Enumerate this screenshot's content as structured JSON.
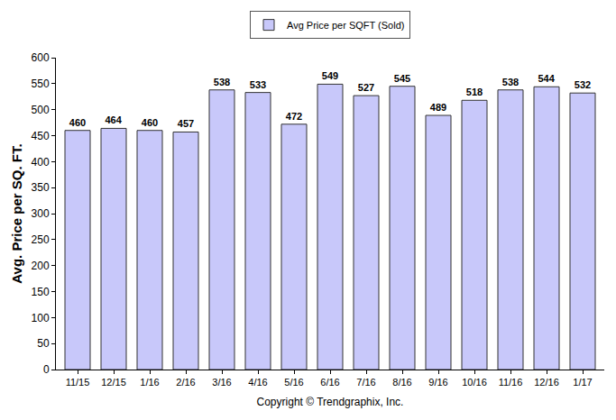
{
  "chart_data": {
    "type": "bar",
    "series_name": "Avg Price per SQFT (Sold)",
    "y_label": "Avg. Price per SQ. FT.",
    "x_label": "Copyright © Trendgraphix, Inc.",
    "categories": [
      "11/15",
      "12/15",
      "1/16",
      "2/16",
      "3/16",
      "4/16",
      "5/16",
      "6/16",
      "7/16",
      "8/16",
      "9/16",
      "10/16",
      "11/16",
      "12/16",
      "1/17"
    ],
    "values": [
      460,
      464,
      460,
      457,
      538,
      533,
      472,
      549,
      527,
      545,
      489,
      518,
      538,
      544,
      532
    ],
    "color": "#c8c8fa",
    "ylim": [
      0,
      600
    ],
    "yticks": [
      0,
      50,
      100,
      150,
      200,
      250,
      300,
      350,
      400,
      450,
      500,
      550,
      600
    ],
    "grid": false,
    "legend": "top",
    "data_labels": true
  }
}
